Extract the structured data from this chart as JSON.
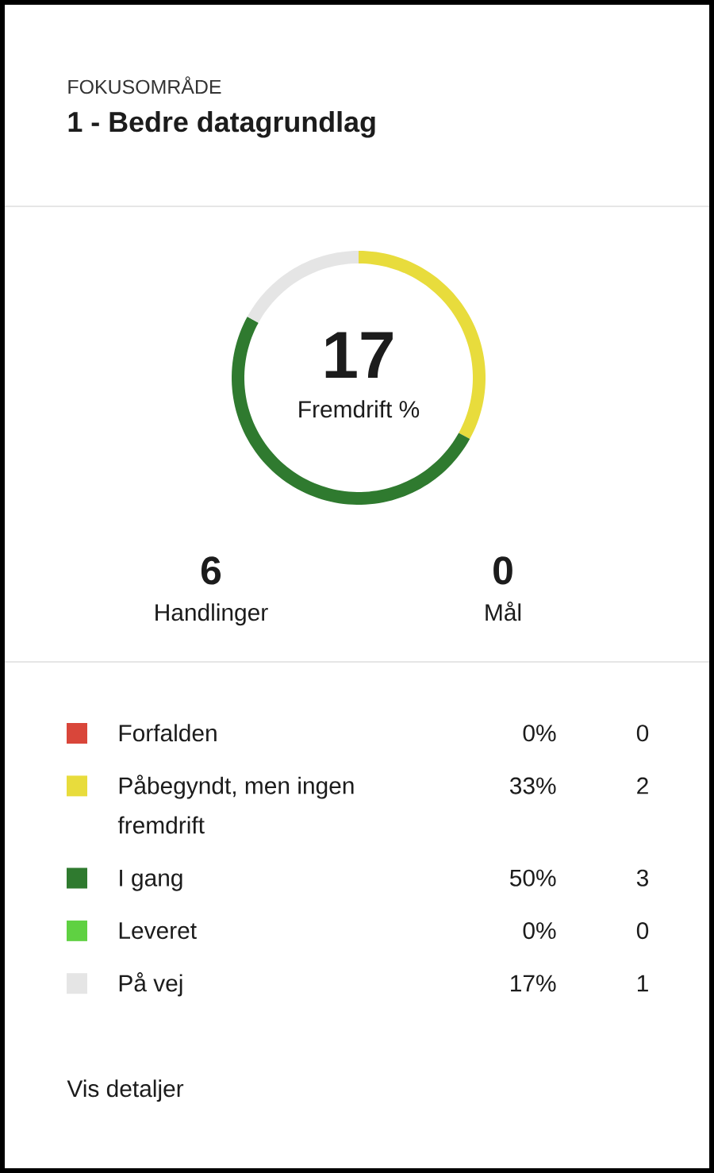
{
  "chart_data": {
    "type": "donut",
    "subtitle": "FOKUSOMRÅDE",
    "title": "1 - Bedre datagrundlag",
    "categories": [
      "Forfalden",
      "Påbegyndt, men ingen fremdrift",
      "I gang",
      "Leveret",
      "På vej"
    ],
    "values": [
      0,
      33,
      50,
      0,
      17
    ],
    "colors": [
      "#d9463a",
      "#e8dc3c",
      "#2f7a2f",
      "#5fd142",
      "#e5e5e5"
    ],
    "value_labels": [
      "0%",
      "33%",
      "50%",
      "0%",
      "17%"
    ],
    "legend": "bottom",
    "annotations": [
      "17",
      "Fremdrift %",
      "6",
      "Handlinger",
      "0",
      "Mål",
      "0",
      "2",
      "3",
      "0",
      "1",
      "Vis detaljer"
    ]
  }
}
